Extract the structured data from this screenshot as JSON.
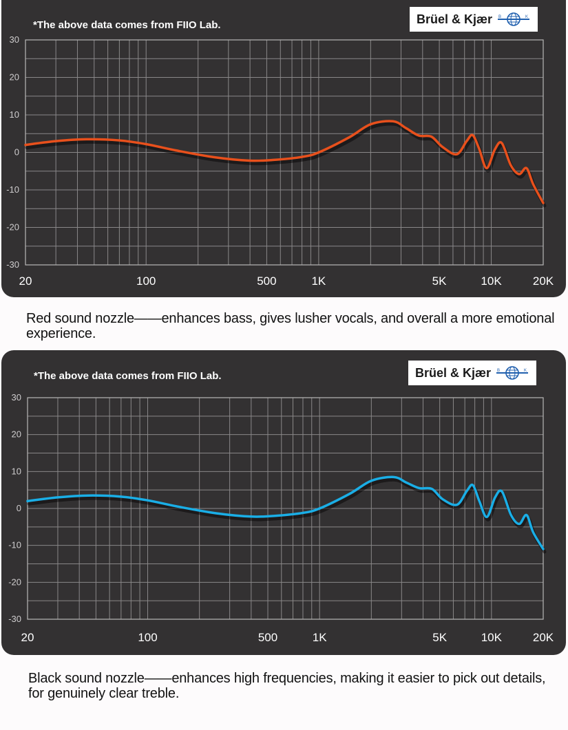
{
  "source_note": "*The above data comes from FIIO Lab.",
  "logo_text": "Brüel & Kjær",
  "logo_icon": "globe-icon",
  "captions": [
    "Red sound nozzle——enhances bass, gives lusher vocals, and overall a more emotional experience.",
    "Black sound nozzle——enhances high frequencies, making it easier to pick out details, for genuinely clear treble."
  ],
  "chart_data": [
    {
      "type": "line",
      "title": "Red sound nozzle frequency response",
      "xlabel": "",
      "ylabel": "",
      "xscale": "log",
      "xlim": [
        20,
        20000
      ],
      "ylim": [
        -30,
        30
      ],
      "grid": true,
      "x_tick_labels": [
        "20",
        "100",
        "500",
        "1K",
        "5K",
        "10K",
        "20K"
      ],
      "x_ticks": [
        20,
        100,
        500,
        1000,
        5000,
        10000,
        20000
      ],
      "y_ticks": [
        30,
        20,
        10,
        0,
        -10,
        -20,
        -30
      ],
      "series": [
        {
          "name": "Red sound nozzle",
          "color": "#e8501c",
          "x": [
            20,
            30,
            45,
            70,
            100,
            150,
            250,
            400,
            550,
            800,
            1000,
            1500,
            2000,
            2700,
            3200,
            3800,
            4500,
            5200,
            6300,
            7200,
            7800,
            8500,
            9400,
            10500,
            11500,
            13000,
            14500,
            16000,
            17500,
            20000
          ],
          "y": [
            2,
            3,
            3.5,
            3.2,
            2.2,
            0.5,
            -1.3,
            -2.2,
            -2.0,
            -1.2,
            0,
            4,
            7.5,
            8.3,
            6.5,
            4.5,
            4.2,
            1.5,
            -0.5,
            3.0,
            4.6,
            1.0,
            -4.2,
            0.8,
            2.5,
            -3.5,
            -5.8,
            -4.2,
            -8.5,
            -13.5
          ]
        }
      ]
    },
    {
      "type": "line",
      "title": "Black sound nozzle frequency response",
      "xlabel": "",
      "ylabel": "",
      "xscale": "log",
      "xlim": [
        20,
        20000
      ],
      "ylim": [
        -30,
        30
      ],
      "grid": true,
      "x_tick_labels": [
        "20",
        "100",
        "500",
        "1K",
        "5K",
        "10K",
        "20K"
      ],
      "x_ticks": [
        20,
        100,
        500,
        1000,
        5000,
        10000,
        20000
      ],
      "y_ticks": [
        30,
        20,
        10,
        0,
        -10,
        -20,
        -30
      ],
      "series": [
        {
          "name": "Black sound nozzle",
          "color": "#1aaee6",
          "x": [
            20,
            30,
            45,
            70,
            100,
            150,
            250,
            400,
            550,
            800,
            1000,
            1500,
            2000,
            2700,
            3200,
            3800,
            4500,
            5200,
            6300,
            7200,
            7800,
            8500,
            9400,
            10500,
            11500,
            13000,
            14500,
            16000,
            17500,
            20000
          ],
          "y": [
            2,
            3,
            3.5,
            3.2,
            2.2,
            0.5,
            -1.3,
            -2.2,
            -2.0,
            -1.2,
            0,
            4,
            7.5,
            8.5,
            7.0,
            5.5,
            5.3,
            2.5,
            1.0,
            4.8,
            6.3,
            2.0,
            -2.3,
            3.0,
            4.6,
            -1.8,
            -4.2,
            -1.8,
            -6.5,
            -11.0
          ]
        }
      ]
    }
  ]
}
